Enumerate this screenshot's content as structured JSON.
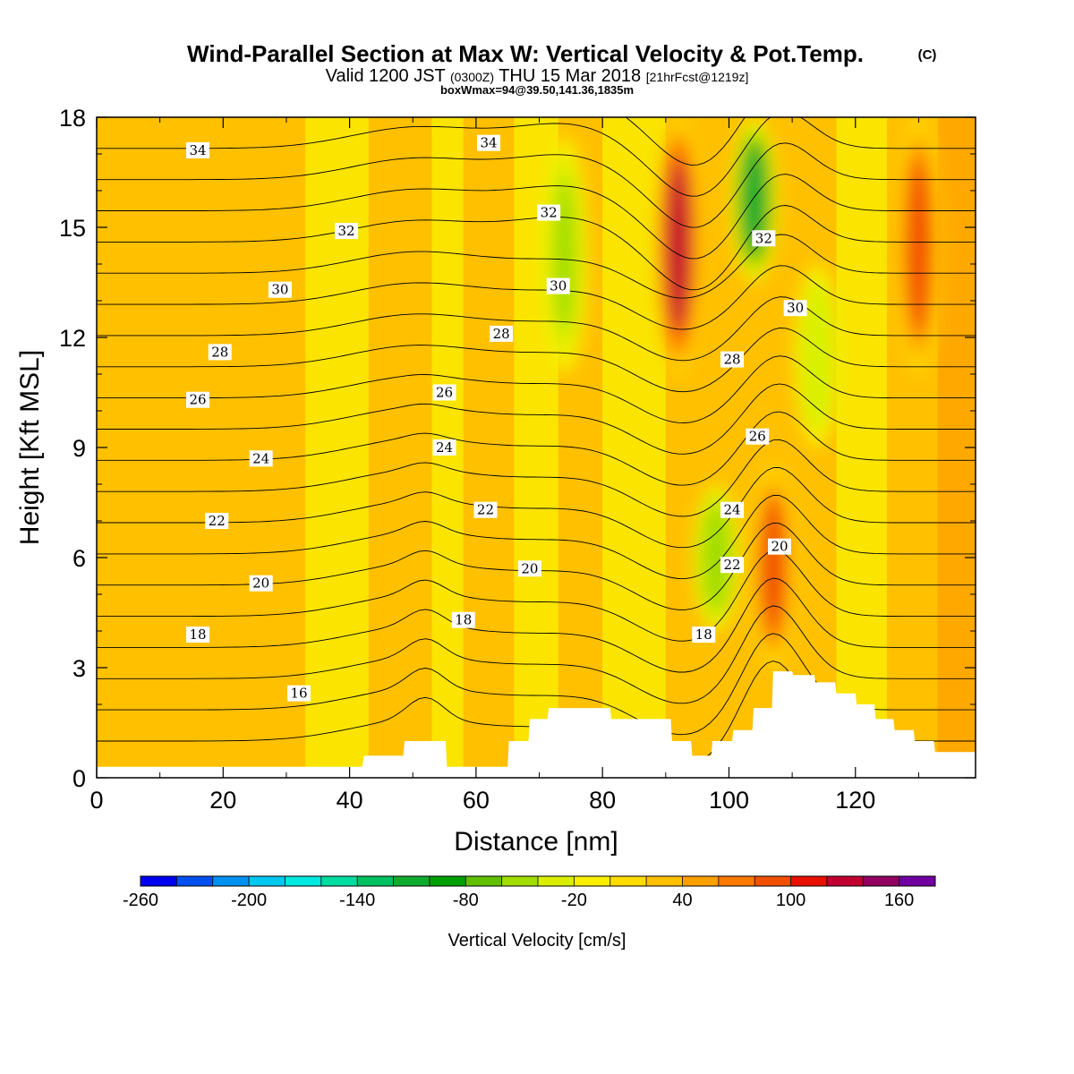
{
  "chart_data": {
    "type": "heatmap",
    "title": "Wind-Parallel Section at Max W: Vertical Velocity & Pot.Temp.",
    "title_mark": "(C)",
    "subtitle": {
      "valid": "Valid 1200 JST",
      "utc": "(0300Z)",
      "date": "THU 15 Mar 2018",
      "forecast": "[21hrFcst@1219z]"
    },
    "box_info": "boxWmax=94@39.50,141.36,1835m",
    "xlabel": "Distance [nm]",
    "ylabel": "Height [Kft MSL]",
    "xlim": [
      0,
      139
    ],
    "ylim": [
      0,
      18
    ],
    "x_ticks": [
      0,
      20,
      40,
      60,
      80,
      100,
      120
    ],
    "y_ticks": [
      0,
      3,
      6,
      9,
      12,
      15,
      18
    ],
    "colorbar": {
      "label": "Vertical Velocity [cm/s]",
      "tick_labels": [
        "-260",
        "-200",
        "-140",
        "-80",
        "-20",
        "40",
        "100",
        "160"
      ],
      "colors": [
        "#0000f0",
        "#0050f0",
        "#0090f0",
        "#00c8f0",
        "#00e8e0",
        "#00dca0",
        "#00c060",
        "#10ac30",
        "#00a000",
        "#60c000",
        "#a0dc00",
        "#d8f000",
        "#f8f000",
        "#ffdc00",
        "#ffc000",
        "#ffa000",
        "#ff7800",
        "#f05000",
        "#e81000",
        "#c00030",
        "#900060",
        "#7000a0"
      ]
    },
    "series": [
      {
        "name": "Vertical Velocity [cm/s]",
        "kind": "shaded"
      },
      {
        "name": "Pot.Temp. (C)",
        "kind": "contours"
      }
    ],
    "vertical_velocity_features": [
      {
        "x": 92,
        "h_min": 11,
        "h_max": 18,
        "value": 120
      },
      {
        "x": 107,
        "h_min": 3,
        "h_max": 8.5,
        "value": 90
      },
      {
        "x": 130,
        "h_min": 11,
        "h_max": 18,
        "value": 90
      },
      {
        "x": 104,
        "h_min": 13.5,
        "h_max": 18,
        "value": -110
      },
      {
        "x": 98,
        "h_min": 4,
        "h_max": 8,
        "value": -60
      },
      {
        "x": 74,
        "h_min": 11,
        "h_max": 17.5,
        "value": -50
      },
      {
        "x": 114,
        "h_min": 9,
        "h_max": 14,
        "value": -40
      }
    ],
    "contour_labels": [
      {
        "value": "16",
        "x": 32,
        "h": 2.3
      },
      {
        "value": "18",
        "x": 16,
        "h": 3.9
      },
      {
        "value": "18",
        "x": 58,
        "h": 4.3
      },
      {
        "value": "18",
        "x": 96,
        "h": 3.9
      },
      {
        "value": "20",
        "x": 26,
        "h": 5.3
      },
      {
        "value": "20",
        "x": 68.5,
        "h": 5.7
      },
      {
        "value": "20",
        "x": 108,
        "h": 6.3
      },
      {
        "value": "22",
        "x": 19,
        "h": 7.0
      },
      {
        "value": "22",
        "x": 61.5,
        "h": 7.3
      },
      {
        "value": "22",
        "x": 100.5,
        "h": 5.8
      },
      {
        "value": "24",
        "x": 26,
        "h": 8.7
      },
      {
        "value": "24",
        "x": 55,
        "h": 9.0
      },
      {
        "value": "24",
        "x": 100.5,
        "h": 7.3
      },
      {
        "value": "26",
        "x": 16,
        "h": 10.3
      },
      {
        "value": "26",
        "x": 55,
        "h": 10.5
      },
      {
        "value": "26",
        "x": 104.5,
        "h": 9.3
      },
      {
        "value": "28",
        "x": 19.5,
        "h": 11.6
      },
      {
        "value": "28",
        "x": 64,
        "h": 12.1
      },
      {
        "value": "28",
        "x": 100.5,
        "h": 11.4
      },
      {
        "value": "30",
        "x": 29,
        "h": 13.3
      },
      {
        "value": "30",
        "x": 73,
        "h": 13.4
      },
      {
        "value": "30",
        "x": 110.5,
        "h": 12.8
      },
      {
        "value": "32",
        "x": 39.5,
        "h": 14.9
      },
      {
        "value": "32",
        "x": 71.5,
        "h": 15.4
      },
      {
        "value": "32",
        "x": 105.5,
        "h": 14.7
      },
      {
        "value": "34",
        "x": 16,
        "h": 17.1
      },
      {
        "value": "34",
        "x": 62,
        "h": 17.3
      }
    ],
    "terrain_profile": {
      "x": [
        0,
        42,
        42.3,
        48.5,
        48.7,
        55.2,
        55.4,
        65,
        65.2,
        68.3,
        68.5,
        71.3,
        71.5,
        81.2,
        81.4,
        90.8,
        91,
        94,
        94.2,
        97.2,
        97.4,
        100.5,
        100.7,
        103.7,
        103.9,
        106.8,
        107,
        110,
        110.2,
        113.5,
        113.7,
        116.8,
        117,
        120,
        120.2,
        123,
        123.2,
        126,
        126.2,
        129.2,
        129.4,
        132.4,
        132.6,
        135.4,
        135.6,
        139
      ],
      "h": [
        0.3,
        0.3,
        0.6,
        0.6,
        1.0,
        1.0,
        0.3,
        0.3,
        1.0,
        1.0,
        1.6,
        1.6,
        1.9,
        1.9,
        1.6,
        1.6,
        1.0,
        1.0,
        0.6,
        0.6,
        1.0,
        1.0,
        1.3,
        1.3,
        1.9,
        1.9,
        2.9,
        2.9,
        2.8,
        2.8,
        2.6,
        2.6,
        2.3,
        2.3,
        2.0,
        2.0,
        1.6,
        1.6,
        1.3,
        1.3,
        1.0,
        1.0,
        0.7,
        0.7,
        0.7,
        0.7
      ]
    }
  }
}
